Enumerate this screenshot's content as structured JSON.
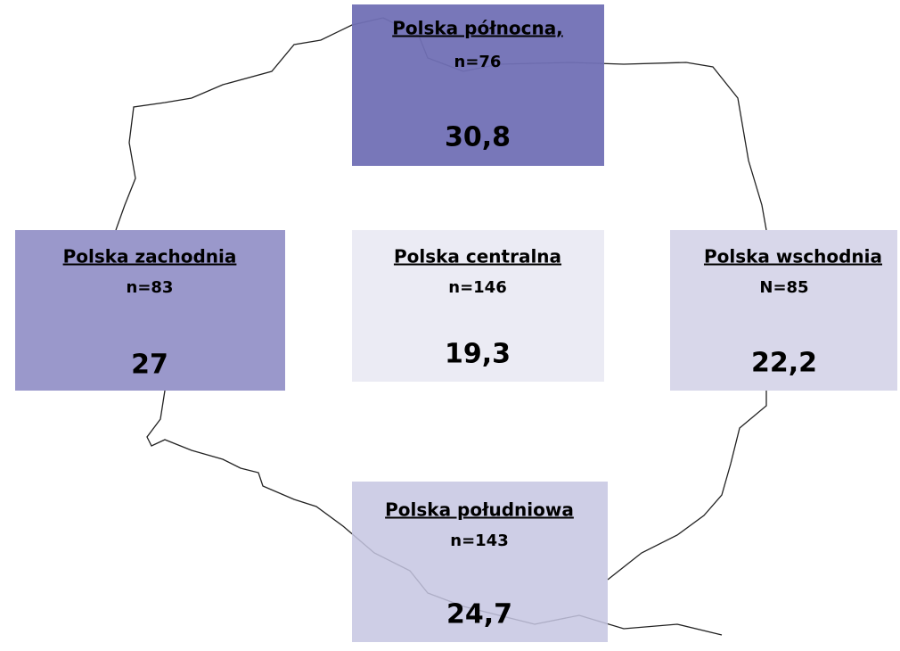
{
  "regions": [
    {
      "name": "Polska północna,",
      "n": "n=76",
      "value": "30,8",
      "color": "#7170b5"
    },
    {
      "name": "Polska zachodnia",
      "n": "n=83",
      "value": "27",
      "color": "#9a98cb"
    },
    {
      "name": "Polska centralna",
      "n": "n=146",
      "value": "19,3",
      "color": "#ebebf4"
    },
    {
      "name": "Polska wschodnia",
      "n": "N=85",
      "value": "22,2",
      "color": "#d8d7ea"
    },
    {
      "name": "Polska południowa",
      "n": "n=143",
      "value": "24,7",
      "color": "#c6c5e2"
    }
  ]
}
